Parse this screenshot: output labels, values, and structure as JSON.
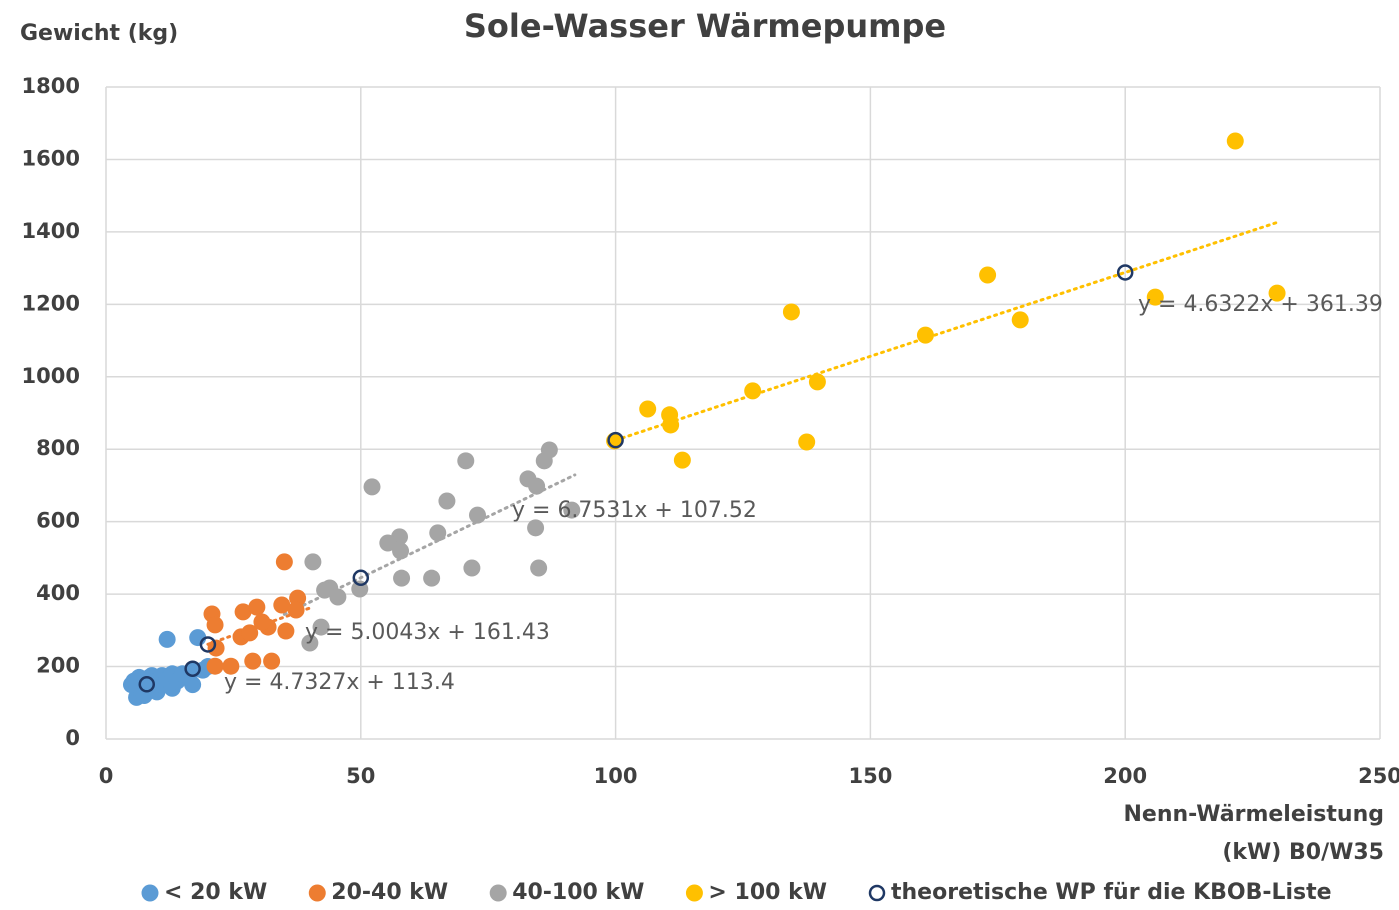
{
  "chart_data": {
    "type": "scatter",
    "title": "Sole-Wasser Wärmepumpe",
    "y_label": "Gewicht (kg)",
    "x_label": [
      "Nenn-Wärmeleistung",
      "(kW) B0/W35"
    ],
    "xlim": [
      0,
      250
    ],
    "xticks": [
      0,
      50,
      100,
      150,
      200,
      250
    ],
    "ylim": [
      0,
      1800
    ],
    "yticks": [
      0,
      200,
      400,
      600,
      800,
      1000,
      1200,
      1400,
      1600,
      1800
    ],
    "grid": true,
    "legend": "bottom",
    "series": [
      {
        "name": "< 20 kW",
        "color": "#5b9bd5",
        "hollow": false,
        "x": [
          5,
          5.5,
          6,
          6,
          6.5,
          7,
          7,
          7.5,
          8,
          8.5,
          9,
          9,
          10,
          10,
          11,
          11,
          12,
          12,
          13,
          13,
          14,
          15,
          17,
          17,
          18,
          19,
          20
        ],
        "values": [
          150,
          160,
          115,
          140,
          170,
          130,
          160,
          120,
          150,
          170,
          140,
          175,
          130,
          160,
          150,
          175,
          165,
          275,
          140,
          180,
          160,
          180,
          150,
          190,
          280,
          190,
          200
        ]
      },
      {
        "name": "20-40 kW",
        "color": "#ed7d31",
        "hollow": false,
        "x": [
          35,
          20.8,
          21.4,
          26.9,
          29.6,
          37.6,
          34.5,
          37.3,
          26.5,
          28.2,
          31.8,
          35.3,
          28.8,
          32.5,
          24.5,
          21.4,
          21.6,
          30.6
        ],
        "values": [
          489,
          345,
          315,
          351,
          364,
          389,
          370,
          356,
          282,
          293,
          309,
          298,
          215,
          215,
          201,
          201,
          251,
          323
        ]
      },
      {
        "name": "40-100 kW",
        "color": "#a5a5a5",
        "hollow": false,
        "x": [
          40.6,
          52.2,
          70.6,
          87,
          86,
          82.8,
          84.5,
          66.9,
          72.9,
          91.4,
          84.3,
          65.1,
          57.6,
          55.3,
          57.8,
          43.9,
          42.9,
          45.5,
          49.8,
          42.2,
          40,
          58,
          63.9,
          71.8,
          84.9
        ],
        "values": [
          489,
          696,
          768,
          798,
          768,
          718,
          698,
          657,
          618,
          632,
          583,
          569,
          558,
          541,
          519,
          417,
          411,
          392,
          414,
          309,
          265,
          444,
          444,
          472,
          472
        ]
      },
      {
        "name": "> 100 kW",
        "color": "#ffc000",
        "hollow": false,
        "x": [
          221.6,
          173,
          134.5,
          179.4,
          160.8,
          205.9,
          229.8,
          126.9,
          139.6,
          106.3,
          110.6,
          110.8,
          113.1,
          137.5,
          99.8
        ],
        "values": [
          1651,
          1281,
          1179,
          1157,
          1115,
          1220,
          1231,
          961,
          986,
          911,
          895,
          867,
          770,
          820,
          823
        ]
      },
      {
        "name": "theoretische WP für die KBOB-Liste",
        "color": "#1f3864",
        "hollow": true,
        "x": [
          8,
          17,
          20,
          50,
          100,
          200
        ],
        "values": [
          151,
          194,
          261,
          445,
          825,
          1288
        ]
      }
    ],
    "trendlines": [
      {
        "label": "y = 4.7327x + 113.4",
        "color": "#5b9bd5",
        "x": [
          5,
          20
        ],
        "values": [
          137,
          208
        ]
      },
      {
        "label": "y = 5.0043x + 161.43",
        "color": "#ed7d31",
        "x": [
          20,
          40
        ],
        "values": [
          261.5,
          361.6
        ]
      },
      {
        "label": "y = 6.7531x + 107.52",
        "color": "#a5a5a5",
        "x": [
          35,
          92
        ],
        "values": [
          344,
          729
        ]
      },
      {
        "label": "y = 4.6322x + 361.39",
        "color": "#ffc000",
        "x": [
          100,
          230
        ],
        "values": [
          825,
          1427
        ]
      }
    ]
  }
}
